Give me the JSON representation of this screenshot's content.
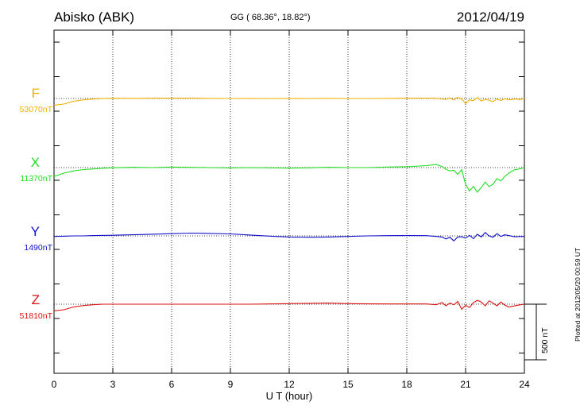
{
  "header": {
    "station": "Abisko (ABK)",
    "coords": "GG ( 68.36°,  18.82°)",
    "date": "2012/04/19"
  },
  "components": [
    {
      "name": "F",
      "baseline": "53070nT",
      "color": "#f0b000"
    },
    {
      "name": "X",
      "baseline": "11370nT",
      "color": "#22dd22"
    },
    {
      "name": "Y",
      "baseline": "1490nT",
      "color": "#1111cc"
    },
    {
      "name": "Z",
      "baseline": "51810nT",
      "color": "#dd1111"
    }
  ],
  "scale_bar_label": "500 nT",
  "plotted_note": "Plotted at 2012/05/20 00:59 UT",
  "chart_data": {
    "type": "line",
    "xlabel": "U T (hour)",
    "xlim": [
      0,
      24
    ],
    "x_ticks": [
      "0",
      "3",
      "6",
      "9",
      "12",
      "15",
      "18",
      "21",
      "24"
    ],
    "grid": true,
    "scale_bar_nT": 500,
    "series": [
      {
        "name": "F",
        "x": [
          0,
          0.5,
          1,
          1.5,
          2,
          2.5,
          3,
          4,
          5,
          6,
          7,
          8,
          9,
          10,
          11,
          12,
          13,
          14,
          15,
          16,
          17,
          18,
          19,
          19.5,
          19.8,
          20,
          20.2,
          20.4,
          20.6,
          20.8,
          21,
          21.2,
          21.4,
          21.6,
          21.8,
          22,
          22.2,
          22.4,
          22.6,
          22.8,
          23,
          23.2,
          23.5,
          23.8,
          24
        ],
        "y": [
          -60,
          -50,
          -25,
          -12,
          -5,
          0,
          2,
          1,
          2,
          3,
          3,
          1,
          0,
          -1,
          0,
          -1,
          0,
          1,
          0,
          0,
          1,
          2,
          3,
          2,
          -5,
          -8,
          4,
          -12,
          10,
          -4,
          -45,
          -12,
          -20,
          8,
          -22,
          -8,
          -15,
          -28,
          -5,
          -18,
          -2,
          -12,
          -5,
          -10,
          2
        ]
      },
      {
        "name": "X",
        "x": [
          0,
          0.5,
          1,
          1.5,
          2,
          2.5,
          3,
          4,
          5,
          6,
          7,
          8,
          9,
          10,
          11,
          12,
          13,
          14,
          15,
          16,
          17,
          18,
          19,
          19.5,
          19.8,
          20,
          20.2,
          20.4,
          20.6,
          20.8,
          21,
          21.2,
          21.4,
          21.6,
          21.8,
          22,
          22.2,
          22.4,
          22.6,
          22.8,
          23,
          23.2,
          23.5,
          23.8,
          24
        ],
        "y": [
          -80,
          -50,
          -30,
          -18,
          -12,
          -6,
          -2,
          3,
          0,
          5,
          2,
          0,
          -3,
          0,
          -2,
          -5,
          -2,
          3,
          0,
          0,
          5,
          8,
          18,
          28,
          10,
          -15,
          -30,
          -25,
          -60,
          -20,
          -150,
          -210,
          -170,
          -220,
          -180,
          -130,
          -170,
          -150,
          -100,
          -120,
          -80,
          -50,
          -20,
          -10,
          0
        ]
      },
      {
        "name": "Y",
        "x": [
          0,
          0.5,
          1,
          1.5,
          2,
          3,
          4,
          5,
          6,
          7,
          8,
          9,
          10,
          11,
          12,
          13,
          14,
          15,
          16,
          17,
          18,
          19,
          19.5,
          19.8,
          20,
          20.2,
          20.4,
          20.6,
          20.8,
          21,
          21.2,
          21.4,
          21.6,
          21.8,
          22,
          22.2,
          22.4,
          22.6,
          22.8,
          23,
          23.5,
          24
        ],
        "y": [
          -5,
          -3,
          0,
          0,
          3,
          6,
          10,
          15,
          20,
          25,
          22,
          18,
          8,
          -2,
          -10,
          -12,
          -10,
          -5,
          0,
          2,
          3,
          2,
          -5,
          -10,
          -28,
          -12,
          -45,
          -10,
          -8,
          -20,
          5,
          -25,
          15,
          -10,
          30,
          0,
          -12,
          20,
          -5,
          10,
          -8,
          -5
        ]
      },
      {
        "name": "Z",
        "x": [
          0,
          0.5,
          1,
          1.5,
          2,
          2.5,
          3,
          4,
          5,
          6,
          7,
          8,
          9,
          10,
          11,
          12,
          13,
          14,
          15,
          16,
          17,
          18,
          19,
          19.5,
          19.8,
          20,
          20.2,
          20.4,
          20.6,
          20.8,
          21,
          21.2,
          21.4,
          21.6,
          21.8,
          22,
          22.2,
          22.4,
          22.6,
          22.8,
          23,
          23.2,
          23.5,
          23.8,
          24
        ],
        "y": [
          -60,
          -50,
          -25,
          -12,
          -5,
          0,
          0,
          0,
          0,
          0,
          0,
          0,
          0,
          0,
          2,
          5,
          8,
          10,
          5,
          3,
          2,
          2,
          2,
          -5,
          15,
          -15,
          10,
          -5,
          25,
          -45,
          -10,
          -30,
          15,
          35,
          20,
          -15,
          30,
          10,
          -15,
          20,
          -8,
          -25,
          -15,
          -5,
          0
        ]
      }
    ]
  }
}
